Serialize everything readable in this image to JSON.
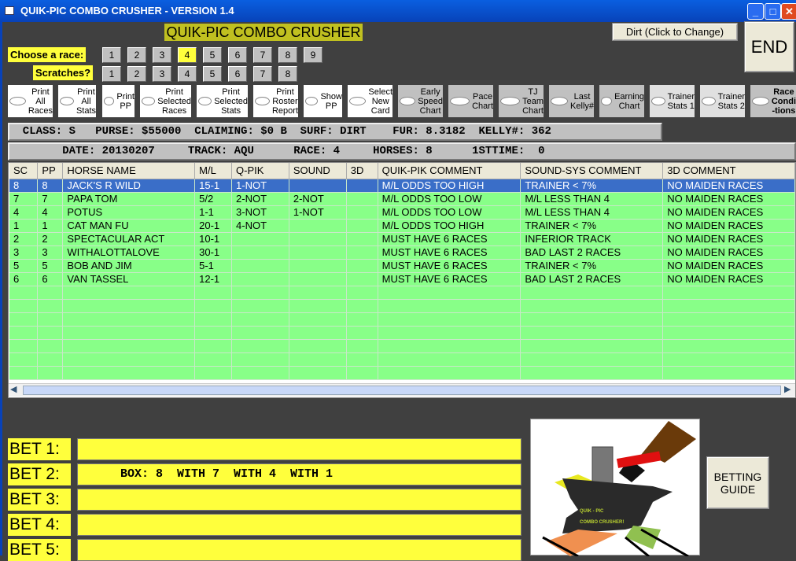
{
  "window": {
    "title": "QUIK-PIC COMBO CRUSHER - VERSION 1.4"
  },
  "header": {
    "title": "QUIK-PIC COMBO CRUSHER",
    "surface_button": "Dirt (Click to Change)",
    "end_button": "END"
  },
  "race_chooser": {
    "label": "Choose  a race:",
    "races": [
      "1",
      "2",
      "3",
      "4",
      "5",
      "6",
      "7",
      "8",
      "9"
    ],
    "selected": "4"
  },
  "scratches": {
    "label": "Scratches?",
    "numbers": [
      "1",
      "2",
      "3",
      "4",
      "5",
      "6",
      "7",
      "8"
    ]
  },
  "options": [
    {
      "label": "Print All Races"
    },
    {
      "label": "Print All Stats"
    },
    {
      "label": "Print PP"
    },
    {
      "label": "Print Selected Races"
    },
    {
      "label": "Print Selected Stats"
    },
    {
      "label": "Print Roster Report"
    },
    {
      "label": "Show PP"
    },
    {
      "label": "Select New Card"
    },
    {
      "label": "Early Speed Chart"
    },
    {
      "label": "Pace Chart"
    },
    {
      "label": "TJ Team Chart"
    },
    {
      "label": "Last Kelly#"
    },
    {
      "label": "Earning Chart"
    },
    {
      "label": "Trainer Stats 1"
    },
    {
      "label": "Trainer Stats 2"
    },
    {
      "label": "Race Condi -tions"
    }
  ],
  "info1": "  CLASS: S   PURSE: $55000  CLAIMING: $0 B  SURF: DIRT    FUR: 8.3182  KELLY#: 362",
  "info2": "        DATE: 20130207     TRACK: AQU      RACE: 4     HORSES: 8      1STTIME:  0",
  "grid": {
    "columns": [
      "SC",
      "PP",
      "HORSE NAME",
      "M/L",
      "Q-PIK",
      "SOUND",
      "3D",
      "QUIK-PIK COMMENT",
      "SOUND-SYS COMMENT",
      "3D COMMENT"
    ],
    "rows": [
      [
        "8",
        "8",
        "JACK'S R WILD",
        "15-1",
        "1-NOT",
        "",
        "",
        "M/L ODDS TOO HIGH",
        "TRAINER < 7%",
        "NO MAIDEN   RACES"
      ],
      [
        "7",
        "7",
        "PAPA TOM",
        "5/2",
        "2-NOT",
        "2-NOT",
        "",
        "M/L ODDS TOO LOW",
        "M/L LESS THAN 4",
        "NO MAIDEN   RACES"
      ],
      [
        "4",
        "4",
        "POTUS",
        "1-1",
        "3-NOT",
        "1-NOT",
        "",
        "M/L ODDS TOO LOW",
        "M/L LESS THAN 4",
        "NO MAIDEN   RACES"
      ],
      [
        "1",
        "1",
        "CAT MAN FU",
        "20-1",
        "4-NOT",
        "",
        "",
        "M/L ODDS TOO HIGH",
        "TRAINER < 7%",
        "NO MAIDEN   RACES"
      ],
      [
        "2",
        "2",
        "SPECTACULAR ACT",
        "10-1",
        "",
        "",
        "",
        "MUST HAVE 6 RACES",
        "INFERIOR    TRACK",
        "NO MAIDEN   RACES"
      ],
      [
        "3",
        "3",
        "WITHALOTTALOVE",
        "30-1",
        "",
        "",
        "",
        "MUST HAVE 6 RACES",
        "BAD LAST 2  RACES",
        "NO MAIDEN   RACES"
      ],
      [
        "5",
        "5",
        "BOB AND JIM",
        "5-1",
        "",
        "",
        "",
        "MUST HAVE 6 RACES",
        "TRAINER < 7%",
        "NO MAIDEN   RACES"
      ],
      [
        "6",
        "6",
        "VAN TASSEL",
        "12-1",
        "",
        "",
        "",
        "MUST HAVE 6 RACES",
        "BAD LAST 2  RACES",
        "NO MAIDEN   RACES"
      ]
    ],
    "selected_row": 0
  },
  "bets": [
    {
      "label": "BET 1:",
      "value": ""
    },
    {
      "label": "BET 2:",
      "value": "BOX: 8  WITH 7  WITH 4  WITH 1"
    },
    {
      "label": "BET 3:",
      "value": ""
    },
    {
      "label": "BET 4:",
      "value": ""
    },
    {
      "label": "BET 5:",
      "value": ""
    }
  ],
  "logo": {
    "text1": "QUIK - PIC",
    "text2": "COMBO CRUSHER!"
  },
  "betting_guide_button": "BETTING GUIDE"
}
